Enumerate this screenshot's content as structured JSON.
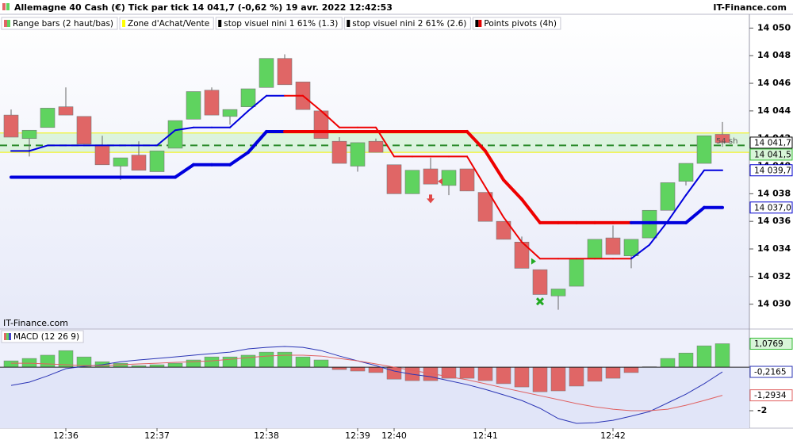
{
  "header": {
    "title": "Allemagne 40 Cash (€) Tick par tick 14 041,7 (-0,62 %) 19 avr. 2022 12:42:53",
    "source": "IT-Finance.com"
  },
  "chart_data": [
    {
      "type": "candlestick",
      "watermark": "IT-Finance.com",
      "annotation": "54 sh",
      "legend": [
        {
          "label": "Range bars (2 haut/bas)",
          "colors": [
            "#e06666",
            "#5fd35f"
          ]
        },
        {
          "label": "Zone d'Achat/Vente",
          "colors": [
            "#ffff00"
          ]
        },
        {
          "label": "stop visuel nini 1 61% (1.3)",
          "colors": [
            "#000000"
          ]
        },
        {
          "label": "stop visuel nini 2 61% (2.6)",
          "colors": [
            "#000000"
          ]
        },
        {
          "label": "Points pivots (4h)",
          "colors": [
            "#000000",
            "#e00000"
          ]
        }
      ],
      "categories": [
        null,
        null,
        null,
        "12:36",
        null,
        null,
        null,
        null,
        "12:37",
        null,
        null,
        null,
        null,
        null,
        "12:38",
        null,
        null,
        null,
        null,
        "12:39",
        null,
        "12:40",
        null,
        null,
        null,
        null,
        "12:41",
        null,
        null,
        null,
        null,
        null,
        null,
        "12:42",
        null,
        null,
        null,
        null,
        null,
        null
      ],
      "open": [
        14043.7,
        14042.0,
        14042.8,
        14044.3,
        14043.6,
        14041.5,
        14040.0,
        14040.8,
        14039.6,
        14041.3,
        14043.4,
        14045.5,
        14043.6,
        14044.3,
        14045.7,
        14047.8,
        14046.1,
        14044.0,
        14041.8,
        14040.0,
        14041.8,
        14040.1,
        14038.0,
        14039.8,
        14038.6,
        14039.8,
        14038.1,
        14036.0,
        14034.5,
        14032.5,
        14030.6,
        14031.3,
        14033.3,
        14034.8,
        14033.5,
        14034.8,
        14036.8,
        14038.9,
        14040.2,
        14042.3
      ],
      "high": [
        14044.1,
        14042.6,
        14044.2,
        14045.7,
        14043.6,
        14042.2,
        14040.6,
        14041.8,
        14041.1,
        14043.3,
        14045.4,
        14045.7,
        14044.1,
        14045.6,
        14047.8,
        14048.1,
        14046.1,
        14044.0,
        14042.1,
        14041.7,
        14042.0,
        14040.1,
        14039.7,
        14040.6,
        14039.7,
        14039.8,
        14038.1,
        14036.0,
        14034.9,
        14032.5,
        14031.1,
        14033.3,
        14034.7,
        14035.7,
        14034.7,
        14036.8,
        14038.8,
        14040.2,
        14042.2,
        14043.2
      ],
      "low": [
        14042.1,
        14040.7,
        14042.8,
        14043.7,
        14041.6,
        14040.1,
        14039.0,
        14039.7,
        14039.6,
        14041.3,
        14043.4,
        14043.7,
        14043.0,
        14044.3,
        14045.7,
        14045.9,
        14044.1,
        14042.0,
        14040.2,
        14039.6,
        14041.0,
        14038.0,
        14038.0,
        14038.7,
        14037.9,
        14038.2,
        14036.0,
        14034.7,
        14032.6,
        14030.7,
        14029.6,
        14031.3,
        14033.3,
        14033.6,
        14032.6,
        14034.8,
        14036.8,
        14038.6,
        14040.2,
        14041.4
      ],
      "close": [
        14042.1,
        14042.6,
        14044.2,
        14043.7,
        14041.6,
        14040.1,
        14040.6,
        14039.7,
        14041.1,
        14043.3,
        14045.4,
        14043.7,
        14044.1,
        14045.6,
        14047.8,
        14045.9,
        14044.1,
        14042.0,
        14040.2,
        14041.7,
        14041.0,
        14038.0,
        14039.7,
        14038.7,
        14039.7,
        14038.2,
        14036.0,
        14034.7,
        14032.6,
        14030.7,
        14031.1,
        14033.3,
        14034.7,
        14033.6,
        14034.7,
        14036.8,
        14038.8,
        14040.2,
        14042.2,
        14041.7
      ],
      "up_color": "#5fd35f",
      "down_color": "#e06666",
      "lines": [
        {
          "width": 2,
          "values": [
            14041.1,
            14041.1,
            14041.5,
            14041.5,
            14041.5,
            14041.5,
            14041.5,
            14041.5,
            14041.5,
            14042.6,
            14042.8,
            14042.8,
            14042.8,
            14044.0,
            14045.1,
            14045.1,
            14045.1,
            14044.0,
            14042.8,
            14042.8,
            14042.8,
            14040.7,
            14040.7,
            14040.7,
            14040.7,
            14040.7,
            14038.5,
            14036.3,
            14034.5,
            14033.3,
            14033.3,
            14033.3,
            14033.3,
            14033.3,
            14033.3,
            14034.3,
            14036.0,
            14037.9,
            14039.7,
            14039.7
          ],
          "colors": [
            "#0000dd",
            "#0000dd",
            "#0000dd",
            "#0000dd",
            "#0000dd",
            "#0000dd",
            "#0000dd",
            "#0000dd",
            "#0000dd",
            "#0000dd",
            "#0000dd",
            "#0000dd",
            "#0000dd",
            "#0000dd",
            "#0000dd",
            "#0000dd",
            "#ee0000",
            "#ee0000",
            "#ee0000",
            "#ee0000",
            "#ee0000",
            "#ee0000",
            "#ee0000",
            "#ee0000",
            "#ee0000",
            "#ee0000",
            "#ee0000",
            "#ee0000",
            "#ee0000",
            "#ee0000",
            "#ee0000",
            "#ee0000",
            "#ee0000",
            "#ee0000",
            "#ee0000",
            "#0000dd",
            "#0000dd",
            "#0000dd",
            "#0000dd",
            "#0000dd"
          ]
        },
        {
          "width": 4,
          "values": [
            14039.2,
            14039.2,
            14039.2,
            14039.2,
            14039.2,
            14039.2,
            14039.2,
            14039.2,
            14039.2,
            14039.2,
            14040.1,
            14040.1,
            14040.1,
            14041.0,
            14042.5,
            14042.5,
            14042.5,
            14042.5,
            14042.5,
            14042.5,
            14042.5,
            14042.5,
            14042.5,
            14042.5,
            14042.5,
            14042.5,
            14041.1,
            14039.0,
            14037.6,
            14035.9,
            14035.9,
            14035.9,
            14035.9,
            14035.9,
            14035.9,
            14035.9,
            14035.9,
            14035.9,
            14037.0,
            14037.0
          ],
          "colors": [
            "#0000dd",
            "#0000dd",
            "#0000dd",
            "#0000dd",
            "#0000dd",
            "#0000dd",
            "#0000dd",
            "#0000dd",
            "#0000dd",
            "#0000dd",
            "#0000dd",
            "#0000dd",
            "#0000dd",
            "#0000dd",
            "#0000dd",
            "#0000dd",
            "#ee0000",
            "#ee0000",
            "#ee0000",
            "#ee0000",
            "#ee0000",
            "#ee0000",
            "#ee0000",
            "#ee0000",
            "#ee0000",
            "#ee0000",
            "#ee0000",
            "#ee0000",
            "#ee0000",
            "#ee0000",
            "#ee0000",
            "#ee0000",
            "#ee0000",
            "#ee0000",
            "#ee0000",
            "#0000dd",
            "#0000dd",
            "#0000dd",
            "#0000dd",
            "#0000dd"
          ]
        }
      ],
      "zone": {
        "low": 14041.0,
        "high": 14042.4,
        "line": 14041.5,
        "fill": "#d6f2d6",
        "edge": "#f2f200",
        "line_color": "#2a8a2a"
      },
      "signals": [
        {
          "index": 23,
          "value": 14037.6,
          "shape": "arrow-down",
          "color": "#e04848"
        },
        {
          "index": 23,
          "value": 14038.9,
          "shape": "triangle-left",
          "color": "#e04848"
        },
        {
          "index": 28,
          "value": 14033.1,
          "shape": "triangle-right",
          "color": "#22aa22"
        },
        {
          "index": 29,
          "value": 14030.2,
          "shape": "cross",
          "color": "#22aa22"
        }
      ],
      "price_labels": [
        {
          "value": 14041.7,
          "label": "14 041,7",
          "border": "#000000",
          "fill": "#ffffff"
        },
        {
          "value": 14041.5,
          "label": "14 041,5",
          "border": "#33bb33",
          "fill": "#d8f5d8"
        },
        {
          "value": 14039.7,
          "label": "14 039,7",
          "border": "#0000cc",
          "fill": "#ffffff"
        },
        {
          "value": 14037.0,
          "label": "14 037,0",
          "border": "#0000cc",
          "fill": "#ffffff"
        }
      ],
      "ylim": [
        14028.2,
        14051.0
      ],
      "yticks": [
        {
          "value": 14030,
          "label": "14 030"
        },
        {
          "value": 14032,
          "label": "14 032"
        },
        {
          "value": 14034,
          "label": "14 034"
        },
        {
          "value": 14036,
          "label": "14 036"
        },
        {
          "value": 14038,
          "label": "14 038"
        },
        {
          "value": 14040,
          "label": "14 040"
        },
        {
          "value": 14042,
          "label": "14 042"
        },
        {
          "value": 14044,
          "label": "14 044"
        },
        {
          "value": 14046,
          "label": "14 046"
        },
        {
          "value": 14048,
          "label": "14 048"
        },
        {
          "value": 14050,
          "label": "14 050"
        }
      ]
    },
    {
      "type": "macd",
      "title": "MACD (12 26 9)",
      "title_colors": [
        "#e06666",
        "#5fd35f",
        "#4444cc"
      ],
      "histogram": [
        0.29,
        0.4,
        0.55,
        0.76,
        0.47,
        0.25,
        0.18,
        0.07,
        0.11,
        0.18,
        0.33,
        0.47,
        0.47,
        0.55,
        0.69,
        0.69,
        0.47,
        0.33,
        -0.11,
        -0.18,
        -0.25,
        -0.55,
        -0.62,
        -0.62,
        -0.51,
        -0.51,
        -0.62,
        -0.76,
        -0.91,
        -1.13,
        -1.09,
        -0.87,
        -0.65,
        -0.51,
        -0.25,
        0.02,
        0.4,
        0.65,
        0.98,
        1.0769
      ],
      "up_color": "#5fd35f",
      "down_color": "#e06666",
      "series": [
        {
          "color": "#2b35b5",
          "values": [
            -0.84,
            -0.69,
            -0.4,
            -0.07,
            0.04,
            0.11,
            0.25,
            0.33,
            0.4,
            0.47,
            0.55,
            0.62,
            0.69,
            0.84,
            0.91,
            0.95,
            0.91,
            0.76,
            0.51,
            0.29,
            0.07,
            -0.18,
            -0.33,
            -0.44,
            -0.62,
            -0.8,
            -1.02,
            -1.27,
            -1.53,
            -1.89,
            -2.36,
            -2.58,
            -2.55,
            -2.44,
            -2.25,
            -2.04,
            -1.64,
            -1.24,
            -0.76,
            -0.2165
          ]
        },
        {
          "color": "#e06060",
          "values": [
            0.18,
            0.18,
            0.15,
            0.11,
            0.07,
            0.07,
            0.11,
            0.15,
            0.18,
            0.22,
            0.25,
            0.29,
            0.36,
            0.44,
            0.51,
            0.55,
            0.55,
            0.51,
            0.4,
            0.29,
            0.15,
            0.0,
            -0.15,
            -0.29,
            -0.44,
            -0.58,
            -0.76,
            -0.95,
            -1.13,
            -1.31,
            -1.49,
            -1.67,
            -1.82,
            -1.93,
            -2.0,
            -2.0,
            -1.93,
            -1.75,
            -1.53,
            -1.2934
          ]
        }
      ],
      "price_labels": [
        {
          "value": 1.0769,
          "label": "1,0769",
          "border": "#33bb33",
          "fill": "#d8f5d8"
        },
        {
          "value": -0.2165,
          "label": "-0,2165",
          "border": "#2b35b5",
          "fill": "#ffffff"
        },
        {
          "value": -1.2934,
          "label": "-1,2934",
          "border": "#e06060",
          "fill": "#ffffff"
        }
      ],
      "ylim": [
        -2.8,
        1.75
      ],
      "yticks": [
        -2
      ]
    }
  ]
}
